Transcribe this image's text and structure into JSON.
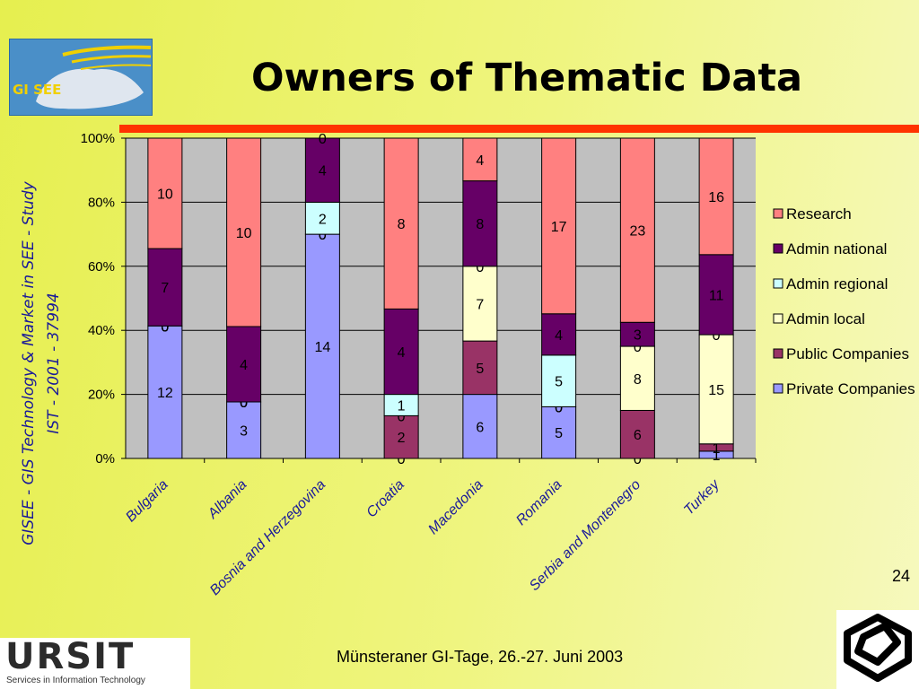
{
  "header": {
    "title": "Owners of Thematic Data",
    "logo_text": "GI SEE",
    "accent_color": "#ff3300"
  },
  "side_caption": {
    "line1": "GISEE - GIS Technology & Market in SEE - Study",
    "line2": "IST - 2001 - 37994"
  },
  "footer": {
    "text": "Münsteraner GI-Tage, 26.-27. Juni 2003",
    "page_number": "24",
    "logo_name": "URSIT",
    "logo_tagline": "Services in Information Technology"
  },
  "chart_data": {
    "type": "bar",
    "stacking": "percent",
    "categories": [
      "Bulgaria",
      "Albania",
      "Bosnia and Herzegovina",
      "Croatia",
      "Macedonia",
      "Romania",
      "Serbia and Montenegro",
      "Turkey"
    ],
    "series": [
      {
        "name": "Private Companies",
        "color": "#9999ff",
        "values": [
          12,
          3,
          14,
          0,
          6,
          5,
          0,
          1
        ]
      },
      {
        "name": "Public Companies",
        "color": "#993366",
        "values": [
          0,
          0,
          0,
          2,
          5,
          0,
          6,
          1
        ]
      },
      {
        "name": "Admin local",
        "color": "#ffffcc",
        "values": [
          0,
          0,
          0,
          0,
          7,
          0,
          8,
          15
        ]
      },
      {
        "name": "Admin regional",
        "color": "#ccffff",
        "values": [
          0,
          0,
          2,
          1,
          0,
          5,
          0,
          0
        ]
      },
      {
        "name": "Admin national",
        "color": "#660066",
        "values": [
          7,
          4,
          4,
          4,
          8,
          4,
          3,
          11
        ]
      },
      {
        "name": "Research",
        "color": "#ff8080",
        "values": [
          10,
          10,
          0,
          8,
          4,
          17,
          23,
          16
        ]
      }
    ],
    "ytick_labels": [
      "0%",
      "20%",
      "40%",
      "60%",
      "80%",
      "100%"
    ],
    "ylim": [
      0,
      100
    ],
    "grid": true,
    "legend": "right",
    "plot_background": "#c0c0c0"
  }
}
